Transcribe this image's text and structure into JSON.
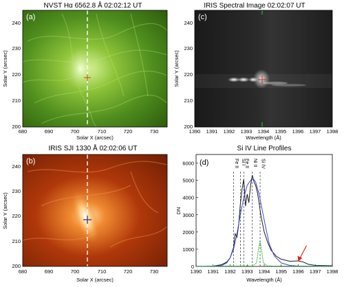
{
  "figure": {
    "panels": [
      {
        "id": "a",
        "tag": "(a)",
        "title": "NVST Hα 6562.8 Å  02:02:12 UT",
        "xlabel": "Solar X (arcsec)",
        "ylabel": "Solar Y (arcsec)",
        "xticks": [
          "680",
          "690",
          "700",
          "710",
          "720",
          "730"
        ],
        "yticks": [
          "200",
          "210",
          "220",
          "230",
          "240"
        ],
        "colormap": "green"
      },
      {
        "id": "b",
        "tag": "(b)",
        "title": "IRIS SJI 1330 Å  02:02:06 UT",
        "xlabel": "Solar X (arcsec)",
        "ylabel": "Solar Y (arcsec)",
        "xticks": [
          "680",
          "690",
          "700",
          "710",
          "720",
          "730"
        ],
        "yticks": [
          "200",
          "210",
          "220",
          "230",
          "240"
        ],
        "colormap": "red"
      },
      {
        "id": "c",
        "tag": "(c)",
        "title": "IRIS Spectral Image 02:02:07 UT",
        "xlabel": "Wavelength (Å)",
        "ylabel": "Solar Y (arcsec)",
        "xticks": [
          "1390",
          "1391",
          "1392",
          "1393",
          "1394",
          "1395",
          "1396",
          "1397",
          "1398"
        ],
        "yticks": [
          "200",
          "210",
          "220",
          "230",
          "240"
        ],
        "colormap": "gray"
      }
    ]
  },
  "chart_data": {
    "type": "line",
    "panel_tag": "(d)",
    "title": "Si IV Line Profiles",
    "xlabel": "Wavelength (Å)",
    "ylabel": "DN",
    "xlim": [
      1390,
      1398
    ],
    "ylim": [
      0,
      6500
    ],
    "xticks": [
      "1390",
      "1391",
      "1392",
      "1393",
      "1394",
      "1395",
      "1396",
      "1397",
      "1398"
    ],
    "yticks": [
      "0",
      "1000",
      "2000",
      "3000",
      "4000",
      "5000",
      "6000"
    ],
    "line_markers": [
      {
        "label": "Fe II",
        "x": 1392.2
      },
      {
        "label": "Si I",
        "x": 1392.6
      },
      {
        "label": "Fe II",
        "x": 1392.8
      },
      {
        "label": "Ni II",
        "x": 1393.3
      },
      {
        "label": "Si IV",
        "x": 1393.76
      }
    ],
    "series": [
      {
        "color": "#1a1a1a",
        "points": [
          [
            1390,
            0
          ],
          [
            1390.5,
            0
          ],
          [
            1391,
            20
          ],
          [
            1391.5,
            100
          ],
          [
            1391.8,
            250
          ],
          [
            1392,
            500
          ],
          [
            1392.2,
            1100
          ],
          [
            1392.3,
            1900
          ],
          [
            1392.4,
            1700
          ],
          [
            1392.5,
            2400
          ],
          [
            1392.6,
            3600
          ],
          [
            1392.7,
            4500
          ],
          [
            1392.8,
            5050
          ],
          [
            1392.9,
            3500
          ],
          [
            1393,
            4200
          ],
          [
            1393.1,
            3700
          ],
          [
            1393.2,
            4700
          ],
          [
            1393.3,
            5300
          ],
          [
            1393.4,
            4900
          ],
          [
            1393.5,
            4700
          ],
          [
            1393.6,
            4300
          ],
          [
            1393.7,
            3700
          ],
          [
            1393.8,
            3000
          ],
          [
            1393.9,
            2500
          ],
          [
            1394,
            2000
          ],
          [
            1394.2,
            1400
          ],
          [
            1394.4,
            950
          ],
          [
            1394.7,
            600
          ],
          [
            1395,
            420
          ],
          [
            1395.5,
            300
          ],
          [
            1396,
            320
          ],
          [
            1396.3,
            250
          ],
          [
            1396.6,
            120
          ],
          [
            1397,
            60
          ],
          [
            1398,
            40
          ]
        ]
      },
      {
        "color": "#3b47c4",
        "points": [
          [
            1390,
            0
          ],
          [
            1390.5,
            0
          ],
          [
            1391,
            10
          ],
          [
            1391.5,
            50
          ],
          [
            1391.8,
            200
          ],
          [
            1392,
            500
          ],
          [
            1392.2,
            1000
          ],
          [
            1392.4,
            1900
          ],
          [
            1392.6,
            3000
          ],
          [
            1392.8,
            4000
          ],
          [
            1393,
            4700
          ],
          [
            1393.2,
            5000
          ],
          [
            1393.35,
            5100
          ],
          [
            1393.5,
            4900
          ],
          [
            1393.7,
            4200
          ],
          [
            1393.9,
            3200
          ],
          [
            1394.1,
            2200
          ],
          [
            1394.3,
            1300
          ],
          [
            1394.6,
            600
          ],
          [
            1395,
            200
          ],
          [
            1395.5,
            60
          ],
          [
            1396,
            20
          ],
          [
            1397,
            5
          ],
          [
            1398,
            0
          ]
        ]
      },
      {
        "color": "#22b822",
        "points": [
          [
            1390,
            20
          ],
          [
            1392,
            20
          ],
          [
            1393.0,
            25
          ],
          [
            1393.3,
            20
          ],
          [
            1393.55,
            200
          ],
          [
            1393.65,
            900
          ],
          [
            1393.76,
            1500
          ],
          [
            1393.85,
            900
          ],
          [
            1393.95,
            200
          ],
          [
            1394.2,
            25
          ],
          [
            1395,
            20
          ],
          [
            1398,
            20
          ]
        ]
      }
    ],
    "annotations": [
      {
        "type": "arrow",
        "color": "#e0251f",
        "x": 1396.0,
        "y": 250
      }
    ]
  }
}
